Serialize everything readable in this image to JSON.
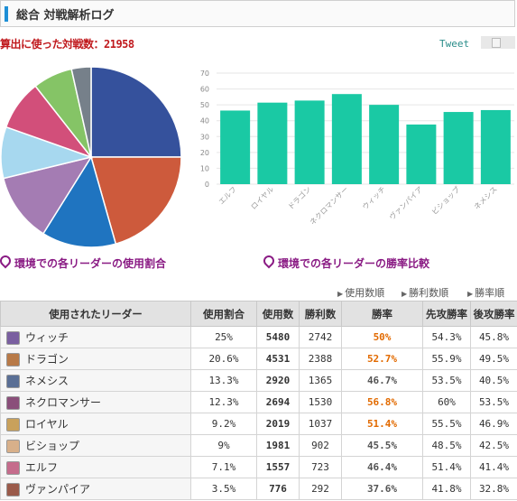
{
  "header": {
    "title": "総合 対戦解析ログ"
  },
  "summary": {
    "total_label": "算出に使った対戦数：21958"
  },
  "share": {
    "tweet_label": "Tweet"
  },
  "captions": {
    "pie": "環境での各リーダーの使用割合",
    "bar": "環境での各リーダーの勝率比較"
  },
  "sort_links": [
    "使用数順",
    "勝利数順",
    "勝率順"
  ],
  "colors": {
    "accent": "#1e8fd6",
    "bar": "#1ac9a4",
    "total_text": "#c0191d",
    "caption": "#8a1b84",
    "highlight_rate": "#e26a00"
  },
  "chart_data": [
    {
      "type": "pie",
      "values": [
        25,
        20.6,
        13.3,
        12.3,
        9.2,
        9,
        7.1,
        3.5
      ],
      "colors": [
        "#35519c",
        "#cd5a3c",
        "#1f74c0",
        "#a47cb3",
        "#a7d8ef",
        "#d24f7a",
        "#85c466",
        "#76808a"
      ]
    },
    {
      "type": "bar",
      "categories": [
        "エルフ",
        "ロイヤル",
        "ドラゴン",
        "ネクロマンサー",
        "ウィッチ",
        "ヴァンパイア",
        "ビショップ",
        "ネメシス"
      ],
      "values": [
        46.4,
        51.4,
        52.7,
        56.8,
        50,
        37.6,
        45.5,
        46.7
      ],
      "ylim": [
        0,
        70
      ],
      "yticks": [
        "0",
        "10",
        "20",
        "30",
        "40",
        "50",
        "60",
        "70"
      ],
      "grid": true
    }
  ],
  "table": {
    "headers": [
      "使用されたリーダー",
      "使用割合",
      "使用数",
      "勝利数",
      "勝率",
      "先攻勝率",
      "後攻勝率"
    ],
    "rows": [
      {
        "name": "ウィッチ",
        "share": "25%",
        "uses": "5480",
        "wins": "2742",
        "rate": "50%",
        "first": "54.3%",
        "second": "45.8%",
        "hi": true,
        "avatar": "#7a5fa0"
      },
      {
        "name": "ドラゴン",
        "share": "20.6%",
        "uses": "4531",
        "wins": "2388",
        "rate": "52.7%",
        "first": "55.9%",
        "second": "49.5%",
        "hi": true,
        "avatar": "#b87a48"
      },
      {
        "name": "ネメシス",
        "share": "13.3%",
        "uses": "2920",
        "wins": "1365",
        "rate": "46.7%",
        "first": "53.5%",
        "second": "40.5%",
        "hi": false,
        "avatar": "#5a6f95"
      },
      {
        "name": "ネクロマンサー",
        "share": "12.3%",
        "uses": "2694",
        "wins": "1530",
        "rate": "56.8%",
        "first": "60%",
        "second": "53.5%",
        "hi": true,
        "avatar": "#8a4f7a"
      },
      {
        "name": "ロイヤル",
        "share": "9.2%",
        "uses": "2019",
        "wins": "1037",
        "rate": "51.4%",
        "first": "55.5%",
        "second": "46.9%",
        "hi": true,
        "avatar": "#c9a15b"
      },
      {
        "name": "ビショップ",
        "share": "9%",
        "uses": "1981",
        "wins": "902",
        "rate": "45.5%",
        "first": "48.5%",
        "second": "42.5%",
        "hi": false,
        "avatar": "#d8b08a"
      },
      {
        "name": "エルフ",
        "share": "7.1%",
        "uses": "1557",
        "wins": "723",
        "rate": "46.4%",
        "first": "51.4%",
        "second": "41.4%",
        "hi": false,
        "avatar": "#c56c8c"
      },
      {
        "name": "ヴァンパイア",
        "share": "3.5%",
        "uses": "776",
        "wins": "292",
        "rate": "37.6%",
        "first": "41.8%",
        "second": "32.8%",
        "hi": false,
        "avatar": "#9a5a4a"
      }
    ]
  }
}
